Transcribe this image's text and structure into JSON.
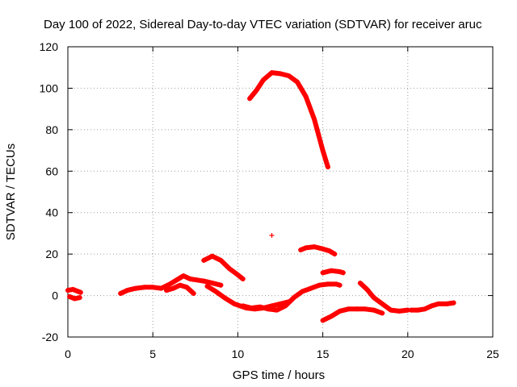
{
  "chart_data": {
    "type": "scatter",
    "title": "Day 100 of 2022, Sidereal Day-to-day VTEC variation (SDTVAR) for receiver aruc",
    "xlabel": "GPS time / hours",
    "ylabel": "SDTVAR / TECUs",
    "xlim": [
      0,
      25
    ],
    "ylim": [
      -20,
      120
    ],
    "xticks": [
      0,
      5,
      10,
      15,
      20,
      25
    ],
    "yticks": [
      -20,
      0,
      20,
      40,
      60,
      80,
      100,
      120
    ],
    "grid": true,
    "marker": "+",
    "color": "#ff0000",
    "segments": [
      {
        "name": "s1",
        "points": [
          [
            0.0,
            2.5
          ],
          [
            0.3,
            3
          ],
          [
            0.6,
            2
          ],
          [
            0.75,
            1.5
          ]
        ]
      },
      {
        "name": "s2",
        "points": [
          [
            0.1,
            -0.5
          ],
          [
            0.4,
            -1.5
          ],
          [
            0.7,
            -1
          ]
        ]
      },
      {
        "name": "s3",
        "points": [
          [
            3.1,
            1
          ],
          [
            3.5,
            2.5
          ],
          [
            4.0,
            3.5
          ],
          [
            4.5,
            4
          ],
          [
            5.0,
            4
          ],
          [
            5.5,
            3.5
          ],
          [
            6.0,
            5.5
          ],
          [
            6.5,
            8
          ],
          [
            6.8,
            9.5
          ],
          [
            7.2,
            8
          ],
          [
            7.6,
            7.5
          ],
          [
            8.0,
            7
          ],
          [
            8.5,
            6
          ],
          [
            9.0,
            5
          ]
        ]
      },
      {
        "name": "s4",
        "points": [
          [
            5.8,
            2.5
          ],
          [
            6.2,
            3.5
          ],
          [
            6.6,
            5
          ],
          [
            7.0,
            4
          ],
          [
            7.4,
            1
          ]
        ]
      },
      {
        "name": "s5",
        "points": [
          [
            8.0,
            17
          ],
          [
            8.5,
            19
          ],
          [
            9.0,
            17
          ],
          [
            9.5,
            13
          ],
          [
            10.0,
            10
          ],
          [
            10.3,
            8
          ]
        ]
      },
      {
        "name": "s6",
        "points": [
          [
            8.2,
            4.5
          ],
          [
            8.7,
            2
          ],
          [
            9.2,
            -1
          ],
          [
            9.8,
            -4
          ],
          [
            10.5,
            -6
          ],
          [
            11.0,
            -6.5
          ],
          [
            11.5,
            -6
          ],
          [
            12.0,
            -5
          ],
          [
            12.5,
            -4
          ],
          [
            13.0,
            -3
          ]
        ]
      },
      {
        "name": "s7",
        "points": [
          [
            10.3,
            -5
          ],
          [
            10.8,
            -6
          ],
          [
            11.3,
            -5.5
          ],
          [
            11.8,
            -6.5
          ],
          [
            12.3,
            -7
          ],
          [
            12.8,
            -5
          ],
          [
            13.3,
            -1
          ],
          [
            13.8,
            2
          ],
          [
            14.3,
            3.5
          ],
          [
            14.8,
            5
          ],
          [
            15.3,
            5.5
          ],
          [
            15.8,
            5.5
          ],
          [
            16.0,
            5
          ]
        ]
      },
      {
        "name": "s8",
        "points": [
          [
            10.7,
            95
          ],
          [
            11.1,
            99
          ],
          [
            11.5,
            104
          ],
          [
            12.0,
            107.5
          ],
          [
            12.5,
            107
          ],
          [
            13.0,
            106
          ],
          [
            13.5,
            103
          ],
          [
            14.0,
            96
          ],
          [
            14.5,
            85
          ],
          [
            15.0,
            70
          ],
          [
            15.3,
            62
          ]
        ]
      },
      {
        "name": "s9",
        "points": [
          [
            12.0,
            29
          ]
        ]
      },
      {
        "name": "s10",
        "points": [
          [
            13.7,
            22
          ],
          [
            14.0,
            23
          ],
          [
            14.5,
            23.5
          ],
          [
            15.0,
            22.5
          ],
          [
            15.4,
            21.5
          ],
          [
            15.7,
            20
          ]
        ]
      },
      {
        "name": "s11",
        "points": [
          [
            15.0,
            11
          ],
          [
            15.5,
            12
          ],
          [
            16.0,
            11.5
          ],
          [
            16.2,
            11
          ]
        ]
      },
      {
        "name": "s12",
        "points": [
          [
            15.0,
            -12
          ],
          [
            15.5,
            -10
          ],
          [
            16.0,
            -7.5
          ],
          [
            16.5,
            -6.5
          ],
          [
            17.0,
            -6.5
          ],
          [
            17.5,
            -6.5
          ],
          [
            18.0,
            -7
          ],
          [
            18.5,
            -8.5
          ]
        ]
      },
      {
        "name": "s13",
        "points": [
          [
            17.2,
            6
          ],
          [
            17.6,
            3
          ],
          [
            18.0,
            -1
          ],
          [
            18.5,
            -4
          ],
          [
            19.0,
            -7
          ],
          [
            19.5,
            -7.5
          ],
          [
            20.0,
            -7
          ]
        ]
      },
      {
        "name": "s14",
        "points": [
          [
            20.2,
            -7
          ],
          [
            20.6,
            -7
          ],
          [
            21.0,
            -6.5
          ],
          [
            21.4,
            -5
          ],
          [
            21.8,
            -4
          ],
          [
            22.3,
            -4
          ],
          [
            22.7,
            -3.5
          ]
        ]
      }
    ]
  }
}
